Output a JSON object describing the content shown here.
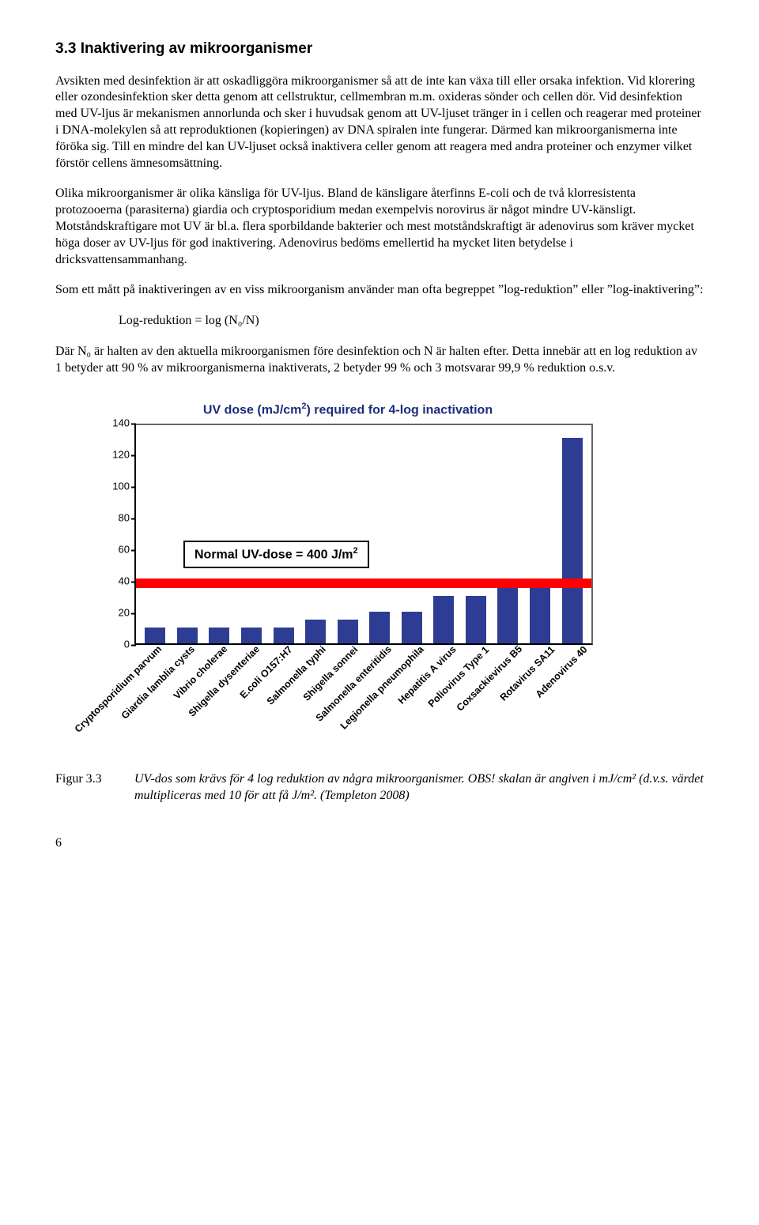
{
  "heading": "3.3   Inaktivering av mikroorganismer",
  "para1": "Avsikten med desinfektion är att oskadliggöra mikroorganismer så att de inte kan växa till eller orsaka infektion. Vid klorering eller ozondesinfektion sker detta genom att cellstruktur, cellmembran m.m. oxideras sönder och cellen dör. Vid desinfektion med UV-ljus är mekanismen annorlunda och sker i huvudsak genom att UV-ljuset tränger in i cellen och reagerar med proteiner i DNA-molekylen så att reproduktionen (kopieringen) av DNA spiralen inte fungerar. Därmed kan mikroorganismerna inte föröka sig. Till en mindre del kan UV-ljuset också inaktivera celler genom att reagera med andra proteiner och enzymer vilket förstör cellens ämnesomsättning.",
  "para2": "Olika mikroorganismer är olika känsliga för UV-ljus. Bland de känsligare återfinns E-coli och de två klorresistenta protozooerna (parasiterna) giardia och cryptosporidium medan exempelvis norovirus är något mindre UV-känsligt. Motståndskraftigare mot UV är bl.a. flera sporbildande bakterier och mest motståndskraftigt är adenovirus som kräver mycket höga doser av UV-ljus för god inaktivering. Adenovirus bedöms emellertid ha mycket liten betydelse i dricksvattensammanhang.",
  "para3": "Som ett mått på inaktiveringen av en viss mikroorganism använder man ofta begreppet ”log-reduktion” eller ”log-inaktivering”:",
  "formula": "Log-reduktion = log (N₀/N)",
  "para4": "Där N₀ är halten av den aktuella mikroorganismen före desinfektion och N är halten efter. Detta innebär att en log reduktion av 1 betyder att 90 % av mikroorganismerna inaktiverats, 2 betyder 99 % och 3 motsvarar 99,9 % reduktion o.s.v.",
  "chart": {
    "title_pre": "UV dose (mJ/cm",
    "title_sup": "2",
    "title_post": ") required for 4-log inactivation",
    "ymax": 140,
    "yticks": [
      "0",
      "20",
      "40",
      "60",
      "80",
      "100",
      "120",
      "140"
    ],
    "annotation_pre": "Normal UV-dose = 400 J/m",
    "annotation_sup": "2",
    "redband_center": 40,
    "bars": [
      {
        "label": "Cryptosporidium parvum",
        "value": 10
      },
      {
        "label": "Giardia lamblia cysts",
        "value": 10
      },
      {
        "label": "Vibrio cholerae",
        "value": 10
      },
      {
        "label": "Shigella dysenteriae",
        "value": 10
      },
      {
        "label": "E.coli O157:H7",
        "value": 10
      },
      {
        "label": "Salmonella typhi",
        "value": 15
      },
      {
        "label": "Shigella sonnei",
        "value": 15
      },
      {
        "label": "Salmonella enteritidis",
        "value": 20
      },
      {
        "label": "Legionella pneumophila",
        "value": 20
      },
      {
        "label": "Hepatitis A virus",
        "value": 30
      },
      {
        "label": "Poliovirus Type 1",
        "value": 30
      },
      {
        "label": "Coxsackievirus B5",
        "value": 35
      },
      {
        "label": "Rotavirus SA11",
        "value": 40
      },
      {
        "label": "Adenovirus 40",
        "value": 130
      }
    ]
  },
  "caption_num": "Figur 3.3",
  "caption_txt": "UV-dos som krävs för 4 log reduktion av några mikroorganismer. OBS! skalan är angiven i mJ/cm² (d.v.s. värdet multipliceras med 10 för att få J/m². (Templeton 2008)",
  "page": "6"
}
